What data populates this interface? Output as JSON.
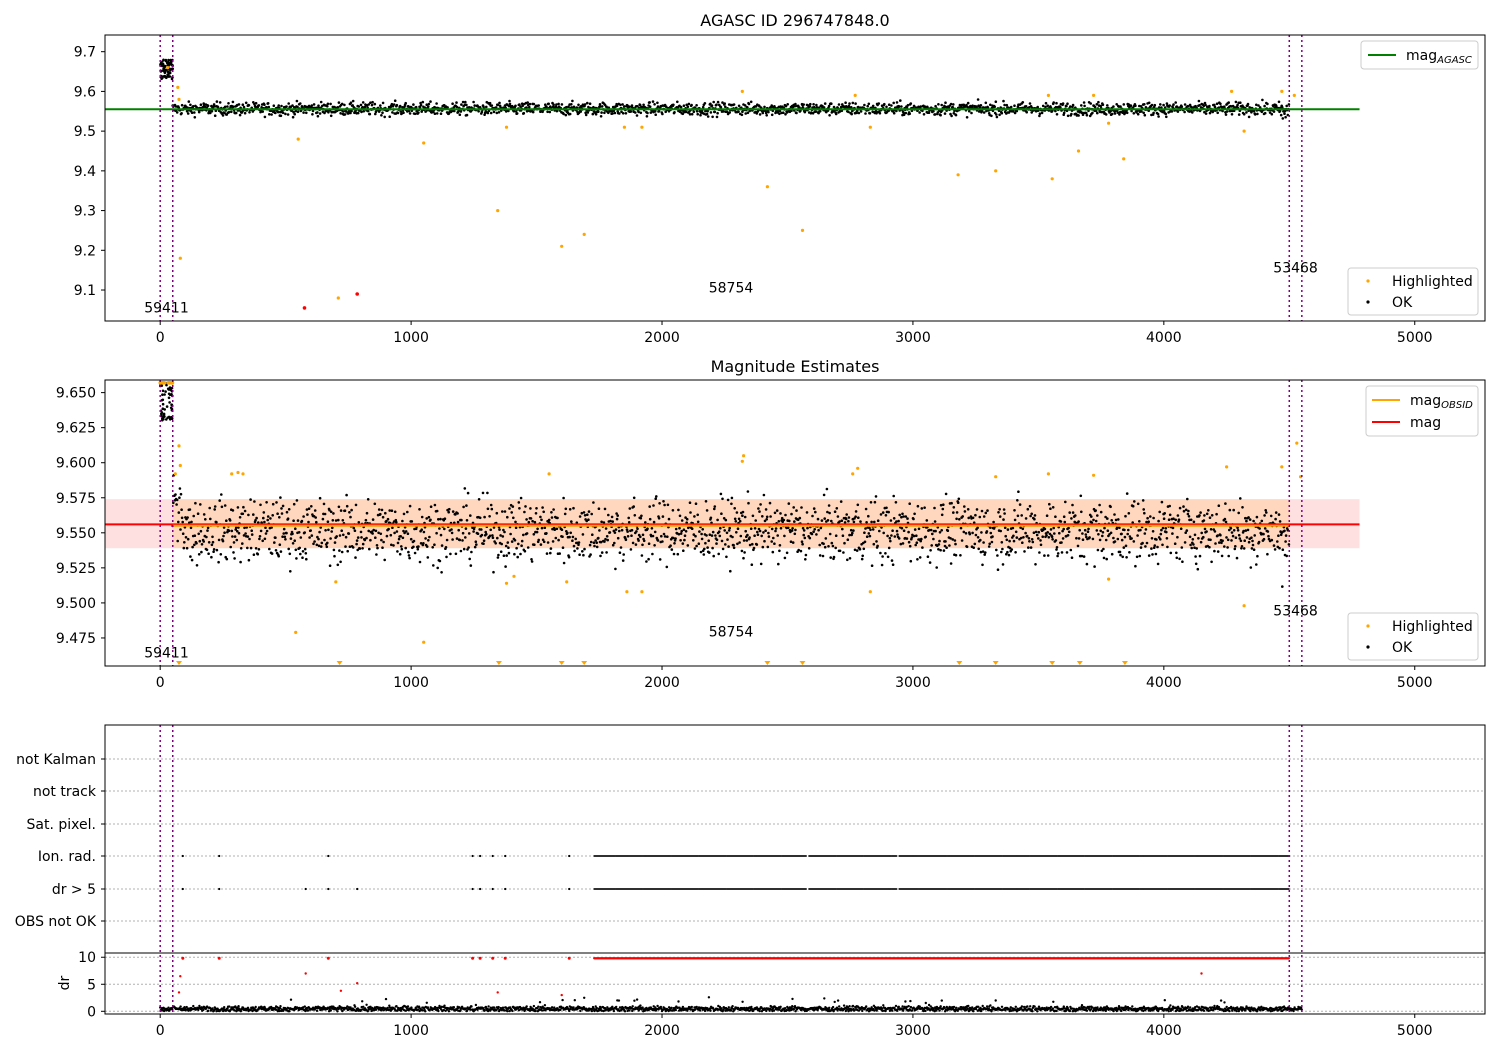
{
  "chart_data": [
    {
      "type": "scatter",
      "title": "AGASC ID 296747848.0",
      "xlim": [
        -220,
        5280
      ],
      "ylim": [
        9.022,
        9.742
      ],
      "xticks": [
        "0",
        "1000",
        "2000",
        "3000",
        "4000",
        "5000"
      ],
      "yticks": [
        "9.1",
        "9.2",
        "9.3",
        "9.4",
        "9.5",
        "9.6",
        "9.7"
      ],
      "grid": false,
      "legend_upper": {
        "placement": "top-right",
        "entries": [
          {
            "label": "mag",
            "sub": "AGASC",
            "color": "#008000"
          }
        ]
      },
      "legend_lower": {
        "placement": "bottom-right",
        "entries": [
          {
            "label": "Highlighted",
            "color": "#ffa500"
          },
          {
            "label": "OK",
            "color": "#000000"
          }
        ]
      },
      "hline": {
        "value": 9.555,
        "x_range": [
          -220,
          4780
        ],
        "color": "#008000"
      },
      "vlines": [
        0,
        50,
        4500,
        4550
      ],
      "vline_color": "#800080",
      "obsid_labels": [
        {
          "text": "59411",
          "x": 25,
          "y": 9.044
        },
        {
          "text": "58754",
          "x": 2275,
          "y": 9.094
        },
        {
          "text": "53468",
          "x": 4525,
          "y": 9.144
        }
      ],
      "series": [
        {
          "name": "OK",
          "color": "#000000",
          "center": 9.556,
          "spread": 0.008,
          "x_range": [
            50,
            4500
          ]
        },
        {
          "name": "OK start cluster",
          "color": "#000000",
          "x_range": [
            0,
            50
          ],
          "y_range": [
            9.63,
            9.68
          ]
        },
        {
          "name": "Highlighted",
          "color": "#ffa500",
          "x": [
            30,
            70,
            75,
            80,
            550,
            710,
            1050,
            1345,
            1380,
            1600,
            1690,
            1850,
            1920,
            2320,
            2420,
            2560,
            2770,
            2830,
            3180,
            3330,
            3540,
            3555,
            3660,
            3720,
            3780,
            3840,
            4270,
            4320,
            4470,
            4520
          ],
          "y": [
            9.66,
            9.61,
            9.58,
            9.18,
            9.48,
            9.08,
            9.47,
            9.3,
            9.51,
            9.21,
            9.24,
            9.51,
            9.51,
            9.6,
            9.36,
            9.25,
            9.59,
            9.51,
            9.39,
            9.4,
            9.59,
            9.38,
            9.45,
            9.59,
            9.52,
            9.43,
            9.6,
            9.5,
            9.6,
            9.59
          ]
        },
        {
          "name": "Red",
          "color": "#ff0000",
          "x": [
            575,
            785
          ],
          "y": [
            9.055,
            9.09
          ]
        }
      ]
    },
    {
      "type": "scatter",
      "title": "Magnitude Estimates",
      "xlim": [
        -220,
        5280
      ],
      "ylim": [
        9.455,
        9.659
      ],
      "xticks": [
        "0",
        "1000",
        "2000",
        "3000",
        "4000",
        "5000"
      ],
      "yticks": [
        "9.475",
        "9.500",
        "9.525",
        "9.550",
        "9.575",
        "9.600",
        "9.625",
        "9.650"
      ],
      "grid": false,
      "legend_upper": {
        "placement": "top-right",
        "entries": [
          {
            "label": "mag",
            "sub": "OBSID",
            "color": "#ffa500"
          },
          {
            "label": "mag",
            "sub": "",
            "color": "#ff0000"
          }
        ]
      },
      "legend_lower": {
        "placement": "bottom-right",
        "entries": [
          {
            "label": "Highlighted",
            "color": "#ffa500"
          },
          {
            "label": "OK",
            "color": "#000000"
          }
        ]
      },
      "hline": {
        "value": 9.556,
        "x_range": [
          -220,
          4780
        ],
        "color": "#ff0000"
      },
      "band": {
        "lo": 9.539,
        "hi": 9.574,
        "x_range": [
          -220,
          4780
        ],
        "color": "#ff0000"
      },
      "obsid_line": {
        "value": 9.555,
        "x_range": [
          50,
          4500
        ],
        "color": "#ffa500"
      },
      "vlines": [
        0,
        50,
        4500,
        4550
      ],
      "vline_color": "#800080",
      "obsid_labels": [
        {
          "text": "59411",
          "x": 25,
          "y": 9.461
        },
        {
          "text": "58754",
          "x": 2275,
          "y": 9.476
        },
        {
          "text": "53468",
          "x": 4525,
          "y": 9.491
        }
      ],
      "series": [
        {
          "name": "OK",
          "color": "#000000",
          "center": 9.5515,
          "spread": 0.011,
          "x_range": [
            50,
            4500
          ]
        },
        {
          "name": "Highlighted",
          "color": "#ffa500",
          "x": [
            60,
            75,
            80,
            285,
            310,
            330,
            540,
            700,
            1050,
            1380,
            1410,
            1550,
            1620,
            1860,
            1920,
            2320,
            2325,
            2760,
            2780,
            2830,
            3330,
            3540,
            3720,
            3780,
            4250,
            4320,
            4470,
            4530,
            4545
          ],
          "y": [
            9.592,
            9.612,
            9.598,
            9.592,
            9.593,
            9.592,
            9.479,
            9.515,
            9.472,
            9.514,
            9.519,
            9.592,
            9.515,
            9.508,
            9.508,
            9.601,
            9.605,
            9.592,
            9.596,
            9.508,
            9.59,
            9.592,
            9.591,
            9.517,
            9.597,
            9.498,
            9.597,
            9.614,
            9.59
          ]
        },
        {
          "name": "Off-scale markers",
          "color": "#ffa500",
          "x": [
            75,
            715,
            1350,
            1600,
            1690,
            2420,
            2560,
            3185,
            3330,
            3555,
            3665,
            3845
          ]
        }
      ]
    },
    {
      "type": "scatter",
      "title": "",
      "xlim": [
        -220,
        5280
      ],
      "xticks": [
        "0",
        "1000",
        "2000",
        "3000",
        "4000",
        "5000"
      ],
      "category_rows": [
        "not Kalman",
        "not track",
        "Sat. pixel.",
        "Ion. rad.",
        "dr > 5",
        "OBS not OK"
      ],
      "grid": true,
      "vlines": [
        0,
        50,
        4500,
        4550
      ],
      "vline_color": "#800080",
      "flag_points": {
        "Ion. rad.": {
          "x": [
            90,
            235,
            670,
            1245,
            1275,
            1325,
            1375,
            1630
          ],
          "dense_range": [
            1730,
            4500
          ]
        },
        "dr > 5": {
          "x": [
            90,
            235,
            580,
            670,
            785,
            1245,
            1275,
            1325,
            1375,
            1630
          ],
          "dense_range": [
            1730,
            4500
          ]
        }
      },
      "dr_subplot": {
        "ylabel": "dr",
        "yticks": [
          "0",
          "5",
          "10"
        ],
        "ylim": [
          -0.5,
          10.6
        ],
        "clipped_value": 9.8,
        "clipped_points": {
          "x": [
            90,
            235,
            670,
            1245,
            1275,
            1325,
            1375,
            1630
          ],
          "dense_range": [
            1730,
            4500
          ]
        },
        "red_points": {
          "x": [
            75,
            80,
            580,
            720,
            785,
            1345,
            1600,
            4150
          ],
          "y": [
            3.5,
            6.5,
            7.0,
            3.8,
            5.2,
            3.5,
            3.0,
            7.0
          ]
        },
        "baseline": {
          "center": 0.45,
          "spread": 0.25,
          "x_range": [
            0,
            4550
          ]
        }
      }
    }
  ]
}
